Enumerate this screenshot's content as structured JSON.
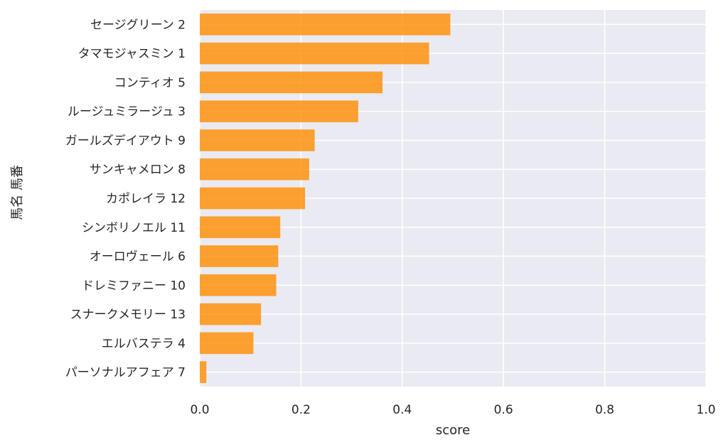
{
  "chart_data": {
    "type": "bar",
    "orientation": "horizontal",
    "categories": [
      "セージグリーン 2",
      "タマモジャスミン 1",
      "コンティオ 5",
      "ルージュミラージュ 3",
      "ガールズデイアウト 9",
      "サンキャメロン 8",
      "カポレイラ 12",
      "シンボリノエル 11",
      "オーロヴェール 6",
      "ドレミファニー 10",
      "スナークメモリー 13",
      "エルバステラ 4",
      "パーソナルアフェア 7"
    ],
    "values": [
      0.495,
      0.453,
      0.361,
      0.313,
      0.227,
      0.216,
      0.208,
      0.159,
      0.155,
      0.151,
      0.121,
      0.106,
      0.013
    ],
    "xlabel": "score",
    "ylabel": "馬名 馬番",
    "xlim": [
      0.0,
      1.0
    ],
    "xticks": [
      "0.0",
      "0.2",
      "0.4",
      "0.6",
      "0.8",
      "1.0"
    ],
    "xtick_values": [
      0.0,
      0.2,
      0.4,
      0.6,
      0.8,
      1.0
    ],
    "grid": true,
    "colors": {
      "bar": "#ff8c00",
      "background": "#eaeaf2",
      "grid": "#ffffff"
    }
  }
}
